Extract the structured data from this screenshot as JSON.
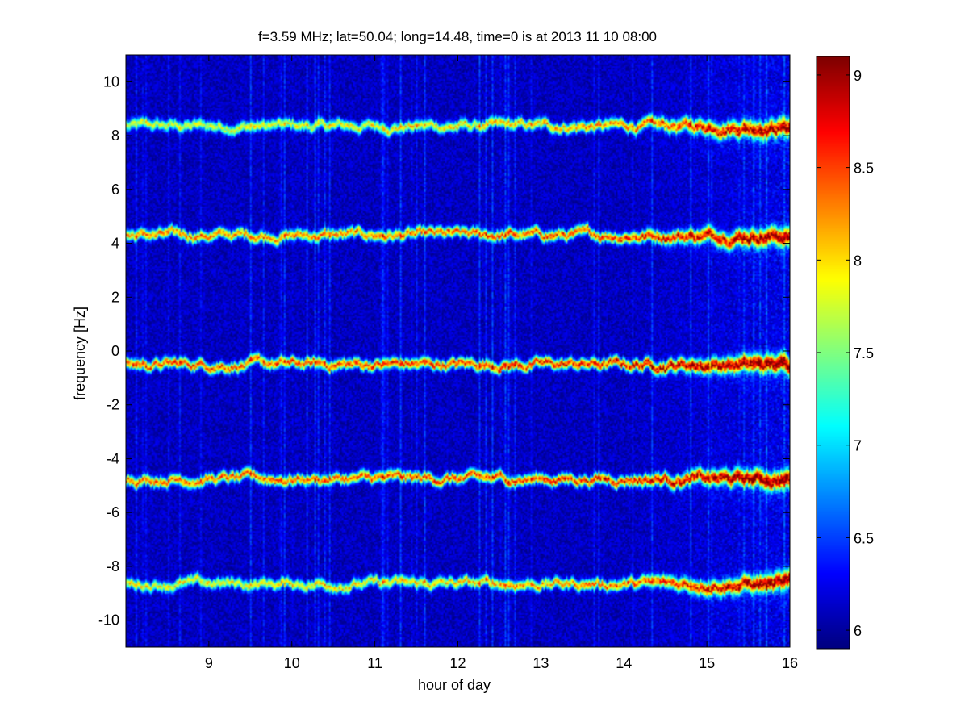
{
  "chart_data": {
    "type": "heatmap",
    "title": "f=3.59 MHz;  lat=50.04; long=14.48, time=0 is at 2013 11 10 08:00",
    "xlabel": "hour of day",
    "ylabel": "frequency [Hz]",
    "xlim": [
      8.0,
      16.0
    ],
    "ylim": [
      -11.0,
      11.0
    ],
    "x_ticks": [
      9,
      10,
      11,
      12,
      13,
      14,
      15,
      16
    ],
    "x_tick_labels": [
      "9",
      "10",
      "11",
      "12",
      "13",
      "14",
      "15",
      "16"
    ],
    "y_ticks": [
      10,
      8,
      6,
      4,
      2,
      0,
      -2,
      -4,
      -6,
      -8,
      -10
    ],
    "y_tick_labels": [
      "10",
      "8",
      "6",
      "4",
      "2",
      "0",
      "-2",
      "-4",
      "-6",
      "-8",
      "-10"
    ],
    "colorbar": {
      "colormap": "jet",
      "clim": [
        5.9,
        9.1
      ],
      "ticks": [
        9,
        8.5,
        8,
        7.5,
        7,
        6.5,
        6
      ],
      "tick_labels": [
        "9",
        "8.5",
        "8",
        "7.5",
        "7",
        "6.5",
        "6"
      ]
    },
    "background_level": 6.1,
    "bands": [
      {
        "center_hz": 8.35,
        "peak_level_early": 7.9,
        "peak_level_late": 8.9
      },
      {
        "center_hz": 4.3,
        "peak_level_early": 8.4,
        "peak_level_late": 9.0
      },
      {
        "center_hz": -0.5,
        "peak_level_early": 8.6,
        "peak_level_late": 9.1
      },
      {
        "center_hz": -4.75,
        "peak_level_early": 8.5,
        "peak_level_late": 9.1
      },
      {
        "center_hz": -8.65,
        "peak_level_early": 8.0,
        "peak_level_late": 9.0
      }
    ],
    "grid": false,
    "legend": "none"
  }
}
